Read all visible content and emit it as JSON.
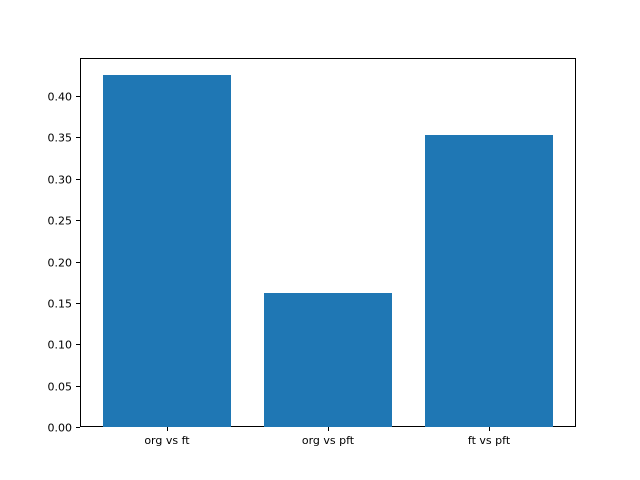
{
  "chart_data": {
    "type": "bar",
    "title": "",
    "xlabel": "",
    "ylabel": "",
    "categories": [
      "org vs ft",
      "org vs pft",
      "ft vs pft"
    ],
    "values": [
      0.425,
      0.162,
      0.353
    ],
    "bar_color": "#1f77b4",
    "bar_width": 0.8,
    "xlim": [
      -0.54,
      2.54
    ],
    "ylim": [
      0,
      0.44625
    ],
    "yticks": [
      0.0,
      0.05,
      0.1,
      0.15,
      0.2,
      0.25,
      0.3,
      0.35,
      0.4
    ],
    "ytick_labels": [
      "0.00",
      "0.05",
      "0.10",
      "0.15",
      "0.20",
      "0.25",
      "0.30",
      "0.35",
      "0.40"
    ],
    "grid": false,
    "legend": false
  },
  "colors": {
    "background": "#ffffff",
    "axis": "#000000",
    "tick_label": "#000000",
    "bar": "#1f77b4"
  },
  "layout_values": {
    "note": "matplotlib default 640x480 figure, axes box left 80 top 58 width 496 height 370"
  }
}
